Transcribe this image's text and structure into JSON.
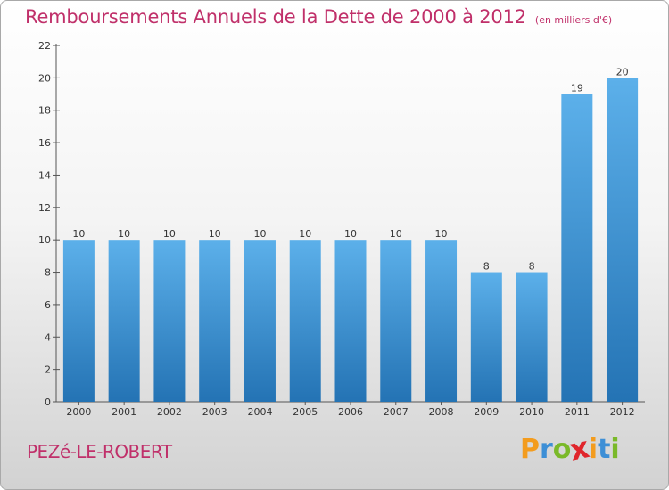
{
  "header": {
    "title": "Remboursements Annuels de la Dette de 2000 à 2012",
    "unit": "(en milliers d'€)"
  },
  "footer": {
    "town": "PEZé-LE-ROBERT",
    "brand": "Proxiti",
    "brand_letters": [
      {
        "char": "P",
        "color": "#f39c1e"
      },
      {
        "char": "r",
        "color": "#3d8fd6"
      },
      {
        "char": "o",
        "color": "#7ab929"
      },
      {
        "char": "x",
        "color": "#e0262c"
      },
      {
        "char": "i",
        "color": "#f39c1e"
      },
      {
        "char": "t",
        "color": "#3d8fd6"
      },
      {
        "char": "i",
        "color": "#7ab929"
      }
    ]
  },
  "chart_data": {
    "type": "bar",
    "title": "Remboursements Annuels de la Dette de 2000 à 2012",
    "subtitle": "(en milliers d'€)",
    "categories": [
      "2000",
      "2001",
      "2002",
      "2003",
      "2004",
      "2005",
      "2006",
      "2007",
      "2008",
      "2009",
      "2010",
      "2011",
      "2012"
    ],
    "values": [
      10,
      10,
      10,
      10,
      10,
      10,
      10,
      10,
      10,
      8,
      8,
      19,
      20
    ],
    "ylim": [
      0,
      22
    ],
    "yticks": [
      0,
      2,
      4,
      6,
      8,
      10,
      12,
      14,
      16,
      18,
      20,
      22
    ],
    "grid": false,
    "bar_color_top": "#5cb0ea",
    "bar_color_bottom": "#2473b4",
    "title_color": "#c0306a"
  }
}
